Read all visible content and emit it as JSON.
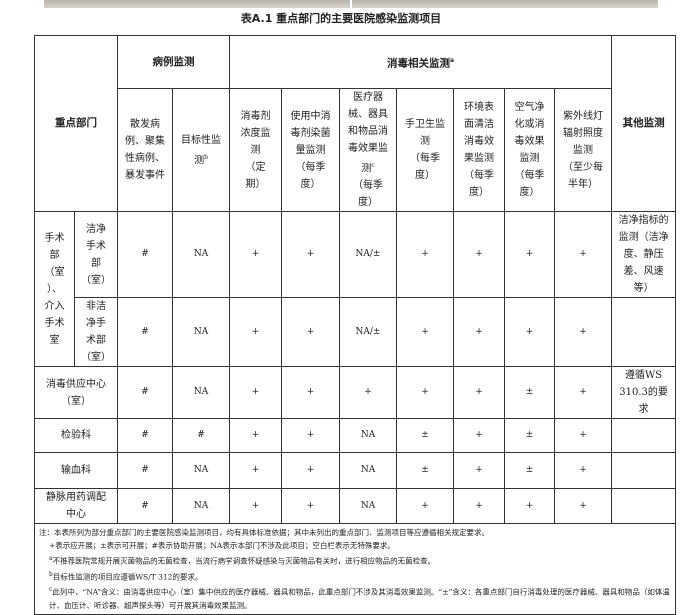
{
  "title": "表A.1 重点部门的主要医院感染监测项目",
  "header": {
    "dept": "重点部门",
    "group1": "病例监测",
    "group2": "消毒相关监测",
    "group2_sup": "a",
    "other": "其他监测",
    "cols": [
      {
        "label": "散发病\n例、聚集\n性病例、\n暴发事件",
        "sup": ""
      },
      {
        "label": "目标性监\n测",
        "sup": "b"
      },
      {
        "label": "消毒剂\n浓度监\n测\n（定\n期）",
        "sup": ""
      },
      {
        "label": "使用中消\n毒剂染菌\n量监测\n（每季\n度）",
        "sup": ""
      },
      {
        "label": "医疗器\n械、器具\n和物品消\n毒效果监\n测",
        "sup": "c",
        "suffix": "\n（每季\n度）"
      },
      {
        "label": "手卫生监\n测\n（每季\n度）",
        "sup": ""
      },
      {
        "label": "环境表\n面清洁\n消毒效\n果监测\n（每季\n度）",
        "sup": ""
      },
      {
        "label": "空气净\n化或消\n毒效果\n监测\n（每季\n度）",
        "sup": ""
      },
      {
        "label": "紫外线灯\n辐射照度\n监测\n（至少每\n半年）",
        "sup": ""
      }
    ]
  },
  "surgery_group": "手术\n部\n（室\n）、\n介入\n手术\n室",
  "rows": [
    {
      "dept": "洁净\n手术\n部\n（室）",
      "cells": [
        "#",
        "NA",
        "+",
        "+",
        "NA/±",
        "+",
        "+",
        "+",
        "+"
      ],
      "other": "洁净指标的\n监测（洁净\n度、静压\n差、风速\n等）"
    },
    {
      "dept": "非洁\n净手\n术部\n（室）",
      "cells": [
        "#",
        "NA",
        "+",
        "+",
        "NA/±",
        "+",
        "+",
        "+",
        "+"
      ],
      "other": ""
    },
    {
      "dept": "消毒供应中心\n（室）",
      "cells": [
        "#",
        "NA",
        "+",
        "+",
        "+",
        "+",
        "+",
        "±",
        "+"
      ],
      "other": "遵循WS\n310.3的要\n求"
    },
    {
      "dept": "检验科",
      "cells": [
        "#",
        "#",
        "+",
        "+",
        "NA",
        "±",
        "+",
        "±",
        "+"
      ],
      "other": ""
    },
    {
      "dept": "输血科",
      "cells": [
        "#",
        "NA",
        "+",
        "+",
        "NA",
        "±",
        "+",
        "±",
        "+"
      ],
      "other": ""
    },
    {
      "dept": "静脉用药调配\n中心",
      "cells": [
        "#",
        "NA",
        "+",
        "+",
        "NA",
        "+",
        "+",
        "+",
        "+"
      ],
      "other": ""
    }
  ],
  "notes": {
    "n0": "注：本表所列为部分重点部门的主要医院感染监测项目，均有具体标准依据；其中未列出的重点部门、监测项目等应遵循相关规定要求。",
    "n1": "+表示应开展；±表示可开展；#表示协助开展；NA表示本部门不涉及此项目；空白栏表示无特殊要求。",
    "a": "不推荐医院常规开展灭菌物品的无菌检查，当流行病学调查怀疑感染与灭菌物品有关时，进行相应物品的无菌检查。",
    "b": "目标性监测的项目应遵循WS/T 312的要求。",
    "c": "此列中，“NA”含义：由消毒供应中心（室）集中供应的医疗器械、器具和物品，此重点部门不涉及其消毒效果监测。“±”含义：各重点部门自行消毒处理的医疗器械、器具和物品（如体温计、血压计、听诊器、超声探头等）可开展其消毒效果监测。",
    "sup_a": "a",
    "sup_b": "b",
    "sup_c": "c"
  }
}
